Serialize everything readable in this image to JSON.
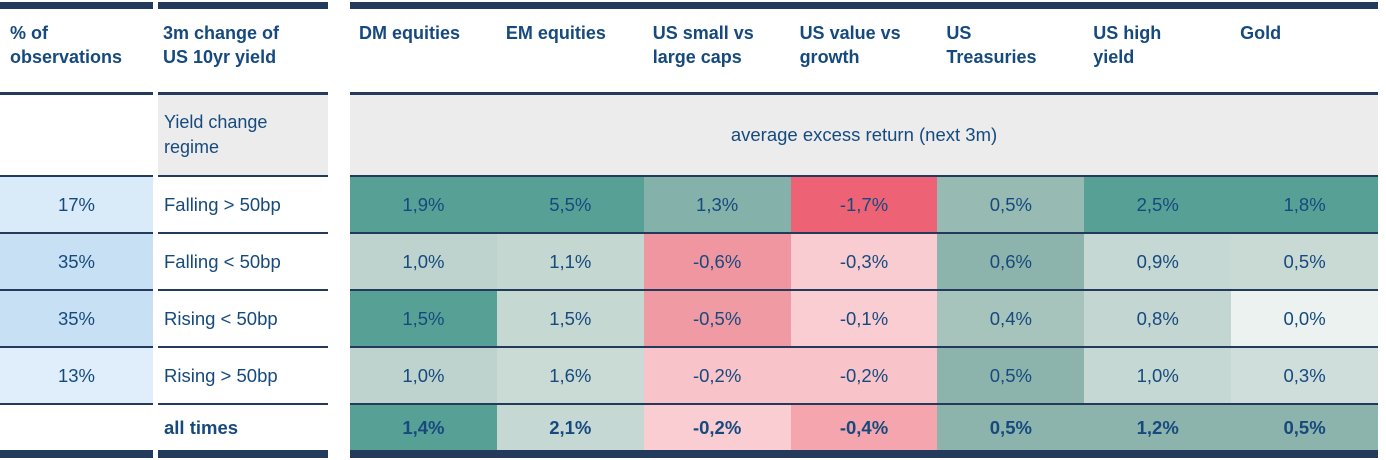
{
  "colors": {
    "navy_text": "#164a7e",
    "border_navy": "#233a5c",
    "subheader_grey": "#ececec",
    "positive_strong_teal": "#57a096",
    "negative_strong_red": "#ee6276"
  },
  "header": {
    "col_observations": "% of\nobservations",
    "col_yield_change": "3m change of\nUS 10yr yield",
    "assets": [
      "DM equities",
      "EM equities",
      "US small vs\nlarge caps",
      "US value vs\ngrowth",
      "US\nTreasuries",
      "US high\nyield",
      "Gold"
    ]
  },
  "subheader": {
    "regime_label": "Yield change\nregime",
    "avg_return_label": "average excess return (next 3m)"
  },
  "rows": [
    {
      "observations_pct": "17%",
      "observations_bg": "#d9eaf8",
      "regime": "Falling > 50bp",
      "values": [
        {
          "text": "1,9%",
          "bg": "#57a096"
        },
        {
          "text": "5,5%",
          "bg": "#57a096"
        },
        {
          "text": "1,3%",
          "bg": "#84b1a9"
        },
        {
          "text": "-1,7%",
          "bg": "#ee6276"
        },
        {
          "text": "0,5%",
          "bg": "#97bab3"
        },
        {
          "text": "2,5%",
          "bg": "#57a096"
        },
        {
          "text": "1,8%",
          "bg": "#57a096"
        }
      ]
    },
    {
      "observations_pct": "35%",
      "observations_bg": "#c8e0f4",
      "regime": "Falling < 50bp",
      "values": [
        {
          "text": "1,0%",
          "bg": "#bed3cd"
        },
        {
          "text": "1,1%",
          "bg": "#c4d7d1"
        },
        {
          "text": "-0,6%",
          "bg": "#f096a1"
        },
        {
          "text": "-0,3%",
          "bg": "#f9ccd1"
        },
        {
          "text": "0,6%",
          "bg": "#8db4ac"
        },
        {
          "text": "0,9%",
          "bg": "#c6d8d3"
        },
        {
          "text": "0,5%",
          "bg": "#c9dad5"
        }
      ]
    },
    {
      "observations_pct": "35%",
      "observations_bg": "#c8e0f4",
      "regime": "Rising < 50bp",
      "values": [
        {
          "text": "1,5%",
          "bg": "#57a096"
        },
        {
          "text": "1,5%",
          "bg": "#c5d8d2"
        },
        {
          "text": "-0,5%",
          "bg": "#f09aa4"
        },
        {
          "text": "-0,1%",
          "bg": "#f9cdd2"
        },
        {
          "text": "0,4%",
          "bg": "#a6c3bc"
        },
        {
          "text": "0,8%",
          "bg": "#c3d6d1"
        },
        {
          "text": "0,0%",
          "bg": "#ecf2f0"
        }
      ]
    },
    {
      "observations_pct": "13%",
      "observations_bg": "#dfeefa",
      "regime": "Rising > 50bp",
      "values": [
        {
          "text": "1,0%",
          "bg": "#bed3cd"
        },
        {
          "text": "1,6%",
          "bg": "#cadbd6"
        },
        {
          "text": "-0,2%",
          "bg": "#f8c3c9"
        },
        {
          "text": "-0,2%",
          "bg": "#f8c3c9"
        },
        {
          "text": "0,5%",
          "bg": "#8db4ac"
        },
        {
          "text": "1,0%",
          "bg": "#c6d8d3"
        },
        {
          "text": "0,3%",
          "bg": "#cfdeda"
        }
      ]
    }
  ],
  "totals": {
    "label": "all times",
    "values": [
      {
        "text": "1,4%",
        "bg": "#57a096"
      },
      {
        "text": "2,1%",
        "bg": "#c6d8d3"
      },
      {
        "text": "-0,2%",
        "bg": "#f9cdd2"
      },
      {
        "text": "-0,4%",
        "bg": "#f4a5ae"
      },
      {
        "text": "0,5%",
        "bg": "#8db4ac"
      },
      {
        "text": "1,2%",
        "bg": "#8db4ac"
      },
      {
        "text": "0,5%",
        "bg": "#8db4ac"
      }
    ]
  },
  "chart_data": {
    "type": "table",
    "title": "Average excess return (next 3m) by US 10yr yield change regime",
    "value_header": "average excess return (next 3m)",
    "columns": [
      "% of observations",
      "3m change of US 10yr yield",
      "DM equities",
      "EM equities",
      "US small vs large caps",
      "US value vs growth",
      "US Treasuries",
      "US high yield",
      "Gold"
    ],
    "rows": [
      {
        "observations_pct": 17,
        "regime": "Falling > 50bp",
        "values": [
          1.9,
          5.5,
          1.3,
          -1.7,
          0.5,
          2.5,
          1.8
        ]
      },
      {
        "observations_pct": 35,
        "regime": "Falling < 50bp",
        "values": [
          1.0,
          1.1,
          -0.6,
          -0.3,
          0.6,
          0.9,
          0.5
        ]
      },
      {
        "observations_pct": 35,
        "regime": "Rising < 50bp",
        "values": [
          1.5,
          1.5,
          -0.5,
          -0.1,
          0.4,
          0.8,
          0.0
        ]
      },
      {
        "observations_pct": 13,
        "regime": "Rising > 50bp",
        "values": [
          1.0,
          1.6,
          -0.2,
          -0.2,
          0.5,
          1.0,
          0.3
        ]
      },
      {
        "observations_pct": null,
        "regime": "all times",
        "values": [
          1.4,
          2.1,
          -0.2,
          -0.4,
          0.5,
          1.2,
          0.5
        ]
      }
    ],
    "units": "percent",
    "layout": "heatmap table; per-column shading: teal = high/positive, red = negative"
  }
}
